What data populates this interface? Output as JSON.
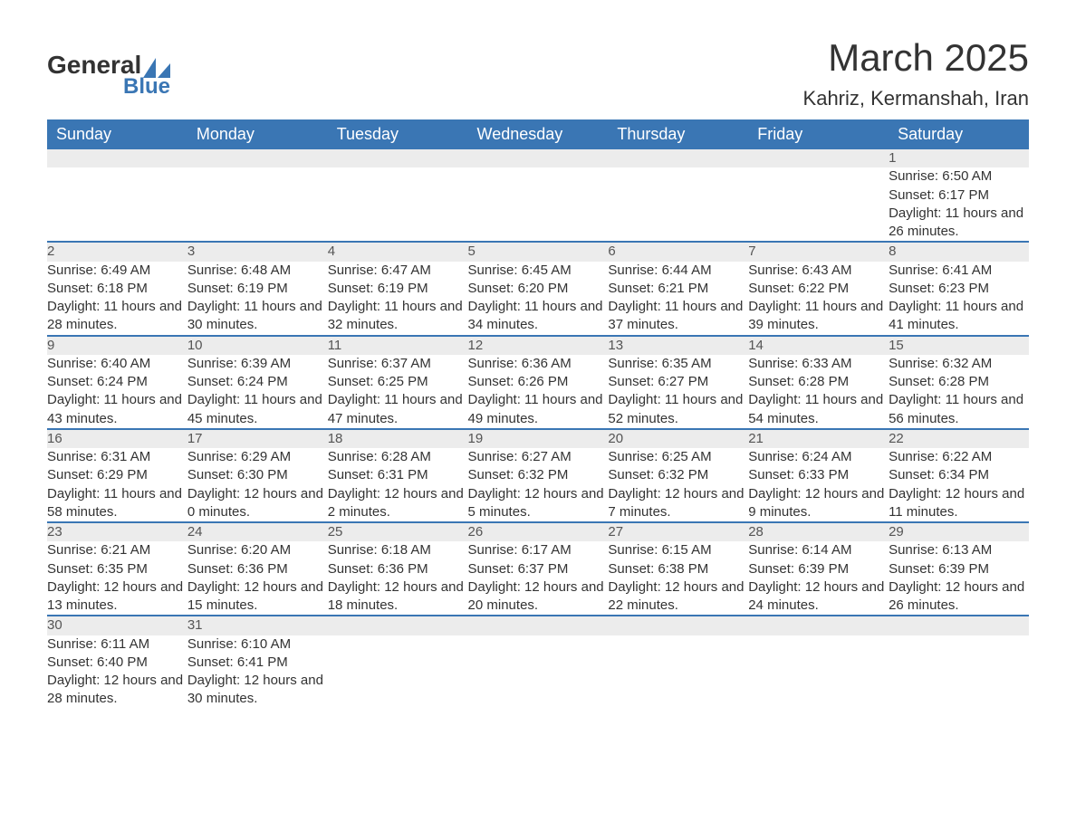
{
  "brand": {
    "line1": "General",
    "line2": "Blue",
    "accent_color": "#3a76b4"
  },
  "title": "March 2025",
  "location": "Kahriz, Kermanshah, Iran",
  "colors": {
    "header_bg": "#3a76b4",
    "header_text": "#ffffff",
    "daynum_bg": "#ececec",
    "row_divider": "#3a76b4",
    "body_text": "#333333",
    "page_bg": "#ffffff"
  },
  "typography": {
    "title_fontsize": 42,
    "location_fontsize": 22,
    "header_fontsize": 18,
    "daynum_fontsize": 17,
    "cell_fontsize": 15
  },
  "day_headers": [
    "Sunday",
    "Monday",
    "Tuesday",
    "Wednesday",
    "Thursday",
    "Friday",
    "Saturday"
  ],
  "weeks": [
    [
      null,
      null,
      null,
      null,
      null,
      null,
      {
        "num": "1",
        "sunrise": "Sunrise: 6:50 AM",
        "sunset": "Sunset: 6:17 PM",
        "daylight": "Daylight: 11 hours and 26 minutes."
      }
    ],
    [
      {
        "num": "2",
        "sunrise": "Sunrise: 6:49 AM",
        "sunset": "Sunset: 6:18 PM",
        "daylight": "Daylight: 11 hours and 28 minutes."
      },
      {
        "num": "3",
        "sunrise": "Sunrise: 6:48 AM",
        "sunset": "Sunset: 6:19 PM",
        "daylight": "Daylight: 11 hours and 30 minutes."
      },
      {
        "num": "4",
        "sunrise": "Sunrise: 6:47 AM",
        "sunset": "Sunset: 6:19 PM",
        "daylight": "Daylight: 11 hours and 32 minutes."
      },
      {
        "num": "5",
        "sunrise": "Sunrise: 6:45 AM",
        "sunset": "Sunset: 6:20 PM",
        "daylight": "Daylight: 11 hours and 34 minutes."
      },
      {
        "num": "6",
        "sunrise": "Sunrise: 6:44 AM",
        "sunset": "Sunset: 6:21 PM",
        "daylight": "Daylight: 11 hours and 37 minutes."
      },
      {
        "num": "7",
        "sunrise": "Sunrise: 6:43 AM",
        "sunset": "Sunset: 6:22 PM",
        "daylight": "Daylight: 11 hours and 39 minutes."
      },
      {
        "num": "8",
        "sunrise": "Sunrise: 6:41 AM",
        "sunset": "Sunset: 6:23 PM",
        "daylight": "Daylight: 11 hours and 41 minutes."
      }
    ],
    [
      {
        "num": "9",
        "sunrise": "Sunrise: 6:40 AM",
        "sunset": "Sunset: 6:24 PM",
        "daylight": "Daylight: 11 hours and 43 minutes."
      },
      {
        "num": "10",
        "sunrise": "Sunrise: 6:39 AM",
        "sunset": "Sunset: 6:24 PM",
        "daylight": "Daylight: 11 hours and 45 minutes."
      },
      {
        "num": "11",
        "sunrise": "Sunrise: 6:37 AM",
        "sunset": "Sunset: 6:25 PM",
        "daylight": "Daylight: 11 hours and 47 minutes."
      },
      {
        "num": "12",
        "sunrise": "Sunrise: 6:36 AM",
        "sunset": "Sunset: 6:26 PM",
        "daylight": "Daylight: 11 hours and 49 minutes."
      },
      {
        "num": "13",
        "sunrise": "Sunrise: 6:35 AM",
        "sunset": "Sunset: 6:27 PM",
        "daylight": "Daylight: 11 hours and 52 minutes."
      },
      {
        "num": "14",
        "sunrise": "Sunrise: 6:33 AM",
        "sunset": "Sunset: 6:28 PM",
        "daylight": "Daylight: 11 hours and 54 minutes."
      },
      {
        "num": "15",
        "sunrise": "Sunrise: 6:32 AM",
        "sunset": "Sunset: 6:28 PM",
        "daylight": "Daylight: 11 hours and 56 minutes."
      }
    ],
    [
      {
        "num": "16",
        "sunrise": "Sunrise: 6:31 AM",
        "sunset": "Sunset: 6:29 PM",
        "daylight": "Daylight: 11 hours and 58 minutes."
      },
      {
        "num": "17",
        "sunrise": "Sunrise: 6:29 AM",
        "sunset": "Sunset: 6:30 PM",
        "daylight": "Daylight: 12 hours and 0 minutes."
      },
      {
        "num": "18",
        "sunrise": "Sunrise: 6:28 AM",
        "sunset": "Sunset: 6:31 PM",
        "daylight": "Daylight: 12 hours and 2 minutes."
      },
      {
        "num": "19",
        "sunrise": "Sunrise: 6:27 AM",
        "sunset": "Sunset: 6:32 PM",
        "daylight": "Daylight: 12 hours and 5 minutes."
      },
      {
        "num": "20",
        "sunrise": "Sunrise: 6:25 AM",
        "sunset": "Sunset: 6:32 PM",
        "daylight": "Daylight: 12 hours and 7 minutes."
      },
      {
        "num": "21",
        "sunrise": "Sunrise: 6:24 AM",
        "sunset": "Sunset: 6:33 PM",
        "daylight": "Daylight: 12 hours and 9 minutes."
      },
      {
        "num": "22",
        "sunrise": "Sunrise: 6:22 AM",
        "sunset": "Sunset: 6:34 PM",
        "daylight": "Daylight: 12 hours and 11 minutes."
      }
    ],
    [
      {
        "num": "23",
        "sunrise": "Sunrise: 6:21 AM",
        "sunset": "Sunset: 6:35 PM",
        "daylight": "Daylight: 12 hours and 13 minutes."
      },
      {
        "num": "24",
        "sunrise": "Sunrise: 6:20 AM",
        "sunset": "Sunset: 6:36 PM",
        "daylight": "Daylight: 12 hours and 15 minutes."
      },
      {
        "num": "25",
        "sunrise": "Sunrise: 6:18 AM",
        "sunset": "Sunset: 6:36 PM",
        "daylight": "Daylight: 12 hours and 18 minutes."
      },
      {
        "num": "26",
        "sunrise": "Sunrise: 6:17 AM",
        "sunset": "Sunset: 6:37 PM",
        "daylight": "Daylight: 12 hours and 20 minutes."
      },
      {
        "num": "27",
        "sunrise": "Sunrise: 6:15 AM",
        "sunset": "Sunset: 6:38 PM",
        "daylight": "Daylight: 12 hours and 22 minutes."
      },
      {
        "num": "28",
        "sunrise": "Sunrise: 6:14 AM",
        "sunset": "Sunset: 6:39 PM",
        "daylight": "Daylight: 12 hours and 24 minutes."
      },
      {
        "num": "29",
        "sunrise": "Sunrise: 6:13 AM",
        "sunset": "Sunset: 6:39 PM",
        "daylight": "Daylight: 12 hours and 26 minutes."
      }
    ],
    [
      {
        "num": "30",
        "sunrise": "Sunrise: 6:11 AM",
        "sunset": "Sunset: 6:40 PM",
        "daylight": "Daylight: 12 hours and 28 minutes."
      },
      {
        "num": "31",
        "sunrise": "Sunrise: 6:10 AM",
        "sunset": "Sunset: 6:41 PM",
        "daylight": "Daylight: 12 hours and 30 minutes."
      },
      null,
      null,
      null,
      null,
      null
    ]
  ]
}
